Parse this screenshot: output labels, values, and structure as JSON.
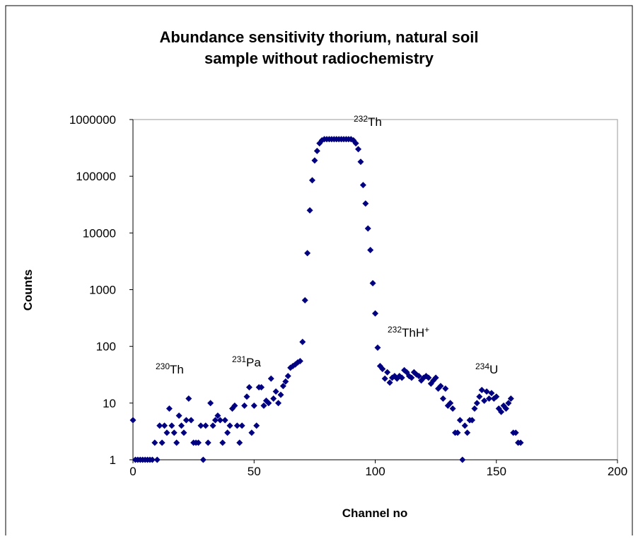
{
  "chart_data": {
    "type": "scatter",
    "title": [
      "Abundance sensitivity thorium, natural soil",
      "sample without radiochemistry"
    ],
    "x_label": "Channel no",
    "y_label": "Counts",
    "log_y": true,
    "color": "#000080",
    "xlim": [
      0,
      200
    ],
    "xticks": [
      0,
      50,
      100,
      150,
      200
    ],
    "ylim": [
      1,
      1000000
    ],
    "yticks": [
      1,
      10,
      100,
      1000,
      10000,
      100000,
      1000000
    ],
    "annotations": [
      {
        "sup": "230",
        "text": "Th"
      },
      {
        "sup": "231",
        "text": "Pa"
      },
      {
        "sup": "232",
        "text": "Th"
      },
      {
        "sup": "232",
        "text": "ThH",
        "sup2": "+"
      },
      {
        "sup": "234",
        "text": "U"
      }
    ],
    "x": [
      0,
      1,
      2,
      3,
      4,
      5,
      6,
      7,
      8,
      9,
      10,
      11,
      12,
      13,
      14,
      15,
      16,
      17,
      18,
      19,
      20,
      21,
      22,
      23,
      24,
      25,
      26,
      27,
      28,
      29,
      30,
      31,
      32,
      33,
      34,
      35,
      36,
      37,
      38,
      39,
      40,
      41,
      42,
      43,
      44,
      45,
      46,
      47,
      48,
      49,
      50,
      51,
      52,
      53,
      54,
      55,
      56,
      57,
      58,
      59,
      60,
      61,
      62,
      63,
      64,
      65,
      66,
      67,
      68,
      69,
      70,
      71,
      72,
      73,
      74,
      75,
      76,
      77,
      78,
      79,
      80,
      81,
      82,
      83,
      84,
      85,
      86,
      87,
      88,
      89,
      90,
      91,
      92,
      93,
      94,
      95,
      96,
      97,
      98,
      99,
      100,
      101,
      102,
      103,
      104,
      105,
      106,
      107,
      108,
      109,
      110,
      111,
      112,
      113,
      114,
      115,
      116,
      117,
      118,
      119,
      120,
      121,
      122,
      123,
      124,
      125,
      126,
      127,
      128,
      129,
      130,
      131,
      132,
      133,
      134,
      135,
      136,
      137,
      138,
      139,
      140,
      141,
      142,
      143,
      144,
      145,
      146,
      147,
      148,
      149,
      150,
      151,
      152,
      153,
      154,
      155,
      156,
      157,
      158,
      159,
      160
    ],
    "values": [
      5,
      1,
      1,
      1,
      1,
      1,
      1,
      1,
      1,
      2,
      1,
      4,
      2,
      4,
      3,
      8,
      4,
      3,
      2,
      6,
      4,
      3,
      5,
      12,
      5,
      2,
      2,
      2,
      4,
      1,
      4,
      2,
      10,
      4,
      5,
      6,
      5,
      2,
      5,
      3,
      4,
      8,
      9,
      4,
      2,
      4,
      9,
      13,
      19,
      3,
      9,
      4,
      19,
      19,
      9,
      11,
      10,
      27,
      12,
      16,
      10,
      14,
      20,
      24,
      30,
      42,
      45,
      48,
      52,
      55,
      120,
      650,
      4400,
      25000,
      85000,
      190000,
      280000,
      380000,
      430000,
      450000,
      450000,
      450000,
      450000,
      450000,
      450000,
      450000,
      450000,
      450000,
      450000,
      450000,
      450000,
      430000,
      380000,
      300000,
      180000,
      70000,
      33000,
      12000,
      5000,
      1300,
      380,
      95,
      45,
      40,
      27,
      35,
      23,
      28,
      30,
      27,
      30,
      28,
      38,
      35,
      30,
      28,
      35,
      32,
      30,
      25,
      28,
      30,
      28,
      22,
      25,
      28,
      18,
      20,
      12,
      18,
      9,
      10,
      8,
      3,
      3,
      5,
      1,
      4,
      3,
      5,
      5,
      8,
      10,
      13,
      17,
      11,
      16,
      12,
      15,
      12,
      13,
      8,
      7,
      9,
      8,
      10,
      12,
      3,
      3,
      2,
      2
    ]
  }
}
